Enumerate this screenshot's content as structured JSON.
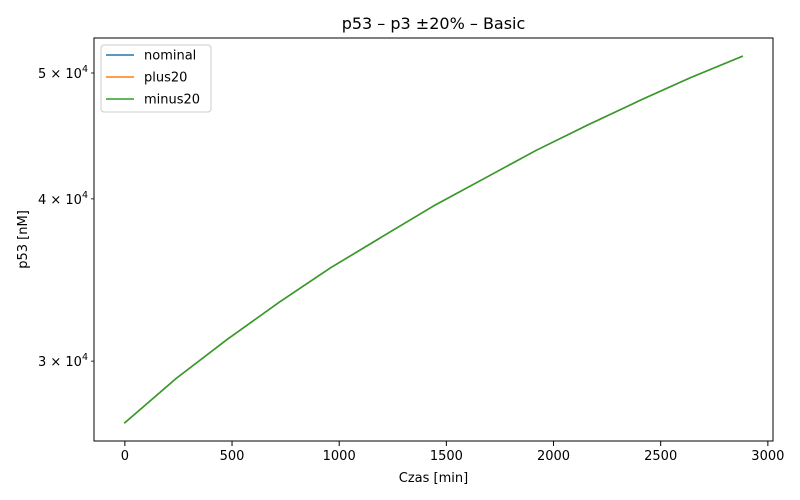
{
  "chart_data": {
    "type": "line",
    "title": "p53 – p3 ±20% – Basic",
    "xlabel": "Czas [min]",
    "ylabel": "p53 [nM]",
    "yscale": "log",
    "xlim": [
      -144,
      3024
    ],
    "ylim": [
      26040,
      53200
    ],
    "grid": false,
    "legend_position": "top-left",
    "x": [
      0,
      240,
      480,
      720,
      960,
      1200,
      1440,
      1680,
      1920,
      2160,
      2400,
      2640,
      2880
    ],
    "series": [
      {
        "name": "nominal",
        "color": "#1f77b4",
        "values": [
          26900,
          29100,
          31200,
          33300,
          35400,
          37400,
          39500,
          41500,
          43600,
          45600,
          47600,
          49600,
          51500
        ]
      },
      {
        "name": "plus20",
        "color": "#ff7f0e",
        "values": [
          26900,
          29100,
          31200,
          33300,
          35400,
          37400,
          39500,
          41500,
          43600,
          45600,
          47600,
          49600,
          51500
        ]
      },
      {
        "name": "minus20",
        "color": "#2ca02c",
        "values": [
          26900,
          29100,
          31200,
          33300,
          35400,
          37400,
          39500,
          41500,
          43600,
          45600,
          47600,
          49600,
          51500
        ]
      }
    ],
    "x_ticks": [
      0,
      500,
      1000,
      1500,
      2000,
      2500,
      3000
    ],
    "y_ticks": [
      {
        "value": 30000,
        "mantissa": "3 × 10",
        "exponent": "4"
      },
      {
        "value": 40000,
        "mantissa": "4 × 10",
        "exponent": "4"
      },
      {
        "value": 50000,
        "mantissa": "5 × 10",
        "exponent": "4"
      }
    ]
  }
}
